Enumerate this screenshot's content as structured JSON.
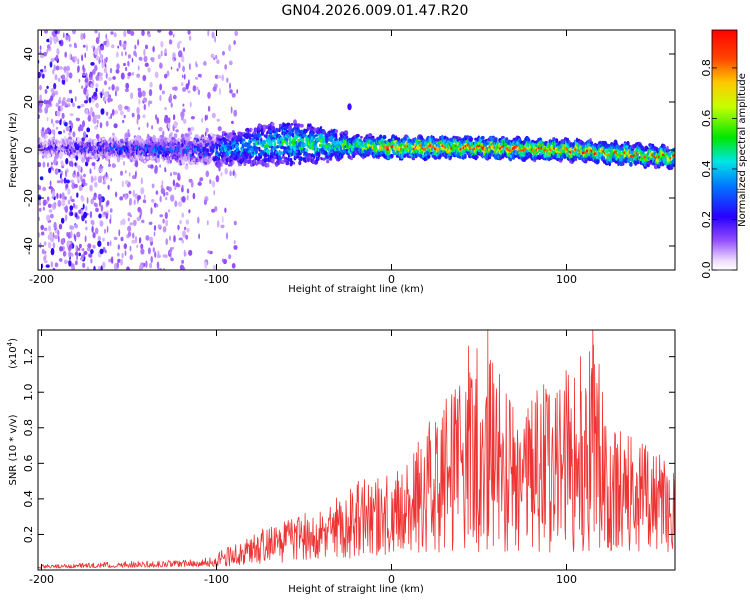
{
  "chart_data": [
    {
      "type": "heatmap",
      "title": "GN04.2026.009.01.47.R20",
      "xlabel": "Height of straight line (km)",
      "ylabel": "Frequency (Hz)",
      "xlim": [
        -202,
        162
      ],
      "ylim": [
        -50,
        50
      ],
      "xticks": [
        -200,
        -100,
        0,
        100
      ],
      "xtick_labels": [
        "-200",
        "-100",
        "0",
        "100"
      ],
      "yticks": [
        -40,
        -20,
        0,
        20,
        40
      ],
      "ytick_labels": [
        "-40",
        "-20",
        "0",
        "20",
        "40"
      ],
      "colorbar": {
        "label": "Normalized spectral amplitude",
        "range": [
          0,
          0.95
        ],
        "ticks": [
          0,
          0.2,
          0.4,
          0.6,
          0.8
        ],
        "tick_labels": [
          "0.0",
          "0.2",
          "0.4",
          "0.6",
          "0.8"
        ],
        "colormap": "rainbow"
      },
      "band": {
        "description": "main energy band centered near 0 Hz",
        "center_freq_by_height": [
          [
            -200,
            1
          ],
          [
            -100,
            0
          ],
          [
            -60,
            3
          ],
          [
            0,
            1
          ],
          [
            50,
            1
          ],
          [
            100,
            0
          ],
          [
            160,
            -3
          ]
        ],
        "halfwidth_hz_by_height": [
          [
            -200,
            3
          ],
          [
            -150,
            4
          ],
          [
            -100,
            6
          ],
          [
            -60,
            9
          ],
          [
            -40,
            7
          ],
          [
            -20,
            4
          ],
          [
            160,
            4
          ]
        ],
        "peak_amplitude_by_height": [
          [
            -200,
            0.2
          ],
          [
            -150,
            0.35
          ],
          [
            -100,
            0.4
          ],
          [
            -60,
            0.55
          ],
          [
            -20,
            0.6
          ],
          [
            0,
            0.85
          ],
          [
            100,
            0.8
          ],
          [
            160,
            0.75
          ]
        ],
        "noise_region_end_km": -100
      },
      "colors": {
        "red": "#ff0000",
        "blue": "#0000ff",
        "violet": "#7000ff"
      }
    },
    {
      "type": "line",
      "xlabel": "Height of straight line (km)",
      "ylabel": "SNR (10 * v/v)",
      "y_scale_label": "(x10",
      "y_scale_exp": "4",
      "xlim": [
        -202,
        162
      ],
      "ylim": [
        0,
        1.35
      ],
      "xticks": [
        -200,
        -100,
        0,
        100
      ],
      "xtick_labels": [
        "-200",
        "-100",
        "0",
        "100"
      ],
      "yticks": [
        0.2,
        0.4,
        0.6,
        0.8,
        1.0,
        1.2
      ],
      "ytick_labels": [
        "0.2",
        "0.4",
        "0.6",
        "0.8",
        "1.0",
        "1.2"
      ],
      "series": [
        {
          "name": "SNR",
          "color": "#ee3333",
          "envelope": [
            [
              -202,
              0.03
            ],
            [
              -150,
              0.05
            ],
            [
              -110,
              0.06
            ],
            [
              -95,
              0.12
            ],
            [
              -70,
              0.25
            ],
            [
              -40,
              0.35
            ],
            [
              -20,
              0.5
            ],
            [
              0,
              0.55
            ],
            [
              20,
              0.8
            ],
            [
              30,
              1.0
            ],
            [
              45,
              1.2
            ],
            [
              55,
              1.35
            ],
            [
              65,
              1.0
            ],
            [
              90,
              1.05
            ],
            [
              110,
              1.2
            ],
            [
              115,
              1.35
            ],
            [
              125,
              0.85
            ],
            [
              145,
              0.75
            ],
            [
              162,
              0.55
            ]
          ],
          "floor": [
            [
              -202,
              0.01
            ],
            [
              -95,
              0.02
            ],
            [
              -50,
              0.05
            ],
            [
              0,
              0.08
            ],
            [
              30,
              0.1
            ],
            [
              162,
              0.1
            ]
          ],
          "annotated_peaks": [
            {
              "x": 55,
              "y": 1.35
            },
            {
              "x": 115,
              "y": 1.35
            },
            {
              "x": 44,
              "y": 1.26
            },
            {
              "x": 108,
              "y": 1.2
            }
          ]
        }
      ]
    }
  ]
}
